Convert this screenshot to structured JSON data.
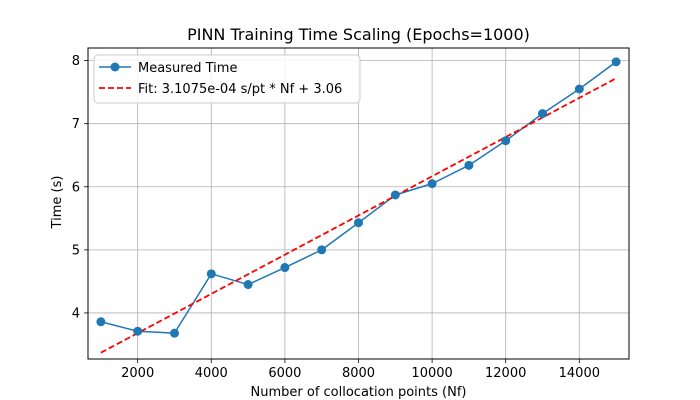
{
  "chart_data": {
    "type": "line",
    "title": "PINN Training Time Scaling (Epochs=1000)",
    "xlabel": "Number of collocation points (Nf)",
    "ylabel": "Time (s)",
    "xlim": [
      650,
      15350
    ],
    "ylim": [
      3.27,
      8.2
    ],
    "xticks": [
      2000,
      4000,
      6000,
      8000,
      10000,
      12000,
      14000
    ],
    "yticks": [
      4,
      5,
      6,
      7,
      8
    ],
    "xtick_labels": [
      "2000",
      "4000",
      "6000",
      "8000",
      "10000",
      "12000",
      "14000"
    ],
    "ytick_labels": [
      "4",
      "5",
      "6",
      "7",
      "8"
    ],
    "grid": true,
    "legend_position": "upper-left",
    "series": [
      {
        "name": "Measured Time",
        "style": "solid-line-with-circle-markers",
        "color": "#1f77b4",
        "x": [
          1000,
          2000,
          3000,
          4000,
          5000,
          6000,
          7000,
          8000,
          9000,
          10000,
          11000,
          12000,
          13000,
          14000,
          15000
        ],
        "y": [
          3.86,
          3.71,
          3.68,
          4.62,
          4.45,
          4.72,
          5.0,
          5.43,
          5.87,
          6.05,
          6.34,
          6.73,
          7.16,
          7.55,
          7.98
        ]
      },
      {
        "name": "Fit: 3.1075e-04 s/pt * Nf + 3.06",
        "style": "dashed-line",
        "color": "#ff0000",
        "x": [
          1000,
          15000
        ],
        "y": [
          3.37,
          7.72
        ]
      }
    ]
  }
}
